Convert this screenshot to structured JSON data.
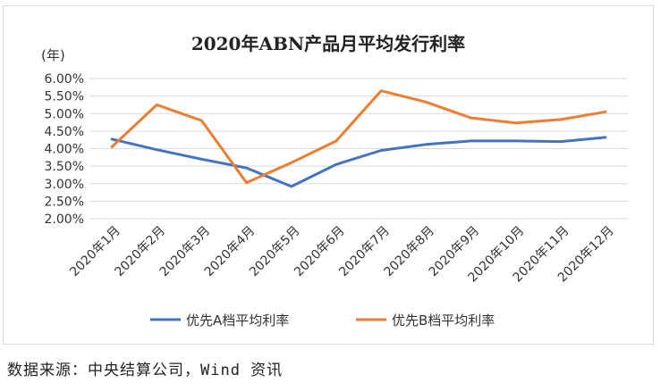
{
  "chart_data": {
    "type": "line",
    "title": "2020年ABN产品月平均发行利率",
    "unit_label": "(年)",
    "categories": [
      "2020年1月",
      "2020年2月",
      "2020年3月",
      "2020年4月",
      "2020年5月",
      "2020年6月",
      "2020年7月",
      "2020年8月",
      "2020年9月",
      "2020年10月",
      "2020年11月",
      "2020年12月"
    ],
    "series": [
      {
        "name": "优先A档平均利率",
        "color": "#4472c4",
        "values": [
          4.27,
          3.97,
          3.7,
          3.45,
          2.92,
          3.55,
          3.95,
          4.12,
          4.22,
          4.22,
          4.2,
          4.32
        ]
      },
      {
        "name": "优先B档平均利率",
        "color": "#ed7d31",
        "values": [
          4.05,
          5.25,
          4.8,
          3.03,
          3.6,
          4.22,
          5.65,
          5.33,
          4.88,
          4.73,
          4.83,
          5.05
        ]
      }
    ],
    "ylim": [
      2.0,
      6.0
    ],
    "yticks": [
      "2.00%",
      "2.50%",
      "3.00%",
      "3.50%",
      "4.00%",
      "4.50%",
      "5.00%",
      "5.50%",
      "6.00%"
    ],
    "grid": true,
    "legend_position": "bottom"
  },
  "source_text": "数据来源：中央结算公司，Wind 资讯"
}
